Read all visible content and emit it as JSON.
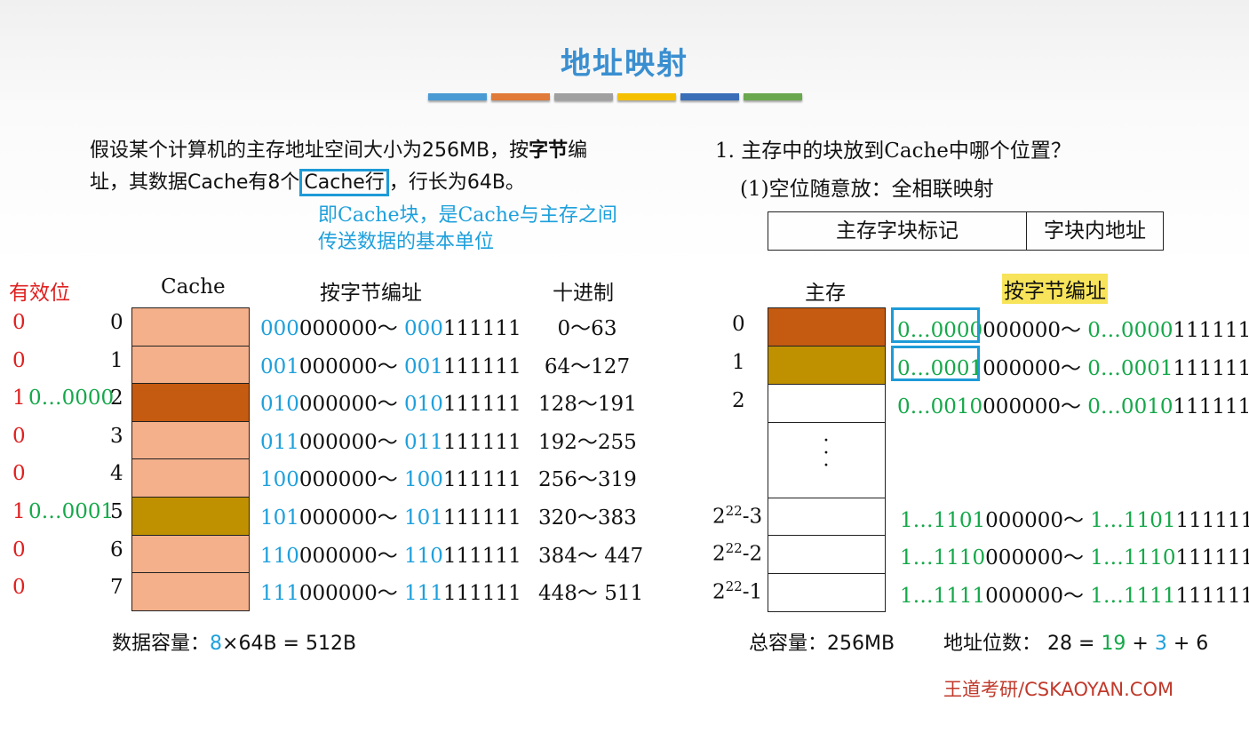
{
  "title": "地址映射",
  "colors": {
    "title": "#3a8fd0",
    "highlight_blue": "#1ea0dc",
    "red": "#e02020",
    "green": "#15a84a",
    "light_line": "#f3b08a",
    "dark_line": "#c55a11",
    "gold_line": "#bf9000"
  },
  "bars": [
    "#4a9ad4",
    "#e07b39",
    "#a0a0a0",
    "#f5c000",
    "#3a6fb8",
    "#6aa84f"
  ],
  "intro": {
    "line1": "假设某个计算机的主存地址空间大小为256MB，按字节编",
    "line1_pre": "假设某个计算机的主存地址空间大小为256MB，按",
    "line1_bold": "字节",
    "line1_post": "编",
    "line2_pre": "址，其数据Cache有8个",
    "line2_boxed": "Cache行",
    "line2_post": "，行长为64B。"
  },
  "note": {
    "line1": "即Cache块，是Cache与主存之间",
    "line2": "传送数据的基本单位"
  },
  "left_headers": {
    "valid": "有效位",
    "cache": "Cache",
    "byte_addr": "按字节编址",
    "decimal": "十进制"
  },
  "cache_rows": [
    {
      "valid": "0",
      "tag": "",
      "index": "0",
      "addr_start_prefix": "000",
      "addr_start_suffix": "000000～",
      "addr_end_prefix": "000",
      "addr_end_suffix": "111111",
      "decimal": "0～63"
    },
    {
      "valid": "0",
      "tag": "",
      "index": "1",
      "addr_start_prefix": "001",
      "addr_start_suffix": "000000～",
      "addr_end_prefix": "001",
      "addr_end_suffix": "111111",
      "decimal": "64～127"
    },
    {
      "valid": "1",
      "tag": "0…0000",
      "index": "2",
      "addr_start_prefix": "010",
      "addr_start_suffix": "000000～",
      "addr_end_prefix": "010",
      "addr_end_suffix": "111111",
      "decimal": "128～191"
    },
    {
      "valid": "0",
      "tag": "",
      "index": "3",
      "addr_start_prefix": "011",
      "addr_start_suffix": "000000～",
      "addr_end_prefix": "011",
      "addr_end_suffix": "111111",
      "decimal": "192～255"
    },
    {
      "valid": "0",
      "tag": "",
      "index": "4",
      "addr_start_prefix": "100",
      "addr_start_suffix": "000000～",
      "addr_end_prefix": "100",
      "addr_end_suffix": "111111",
      "decimal": "256～319"
    },
    {
      "valid": "1",
      "tag": "0…0001",
      "index": "5",
      "addr_start_prefix": "101",
      "addr_start_suffix": "000000～",
      "addr_end_prefix": "101",
      "addr_end_suffix": "111111",
      "decimal": "320～383"
    },
    {
      "valid": "0",
      "tag": "",
      "index": "6",
      "addr_start_prefix": "110",
      "addr_start_suffix": "000000～",
      "addr_end_prefix": "110",
      "addr_end_suffix": "111111",
      "decimal": "384～ 447"
    },
    {
      "valid": "0",
      "tag": "",
      "index": "7",
      "addr_start_prefix": "111",
      "addr_start_suffix": "000000～",
      "addr_end_prefix": "111",
      "addr_end_suffix": "111111",
      "decimal": "448～ 511"
    }
  ],
  "data_capacity": {
    "label": "数据容量：",
    "count": "8",
    "rest": "×64B = 512B"
  },
  "right": {
    "q1": "1. 主存中的块放到Cache中哪个位置？",
    "q2": "(1)空位随意放：全相联映射",
    "tag_field": "主存字块标记",
    "offset_field": "字块内地址",
    "mem_header": "主存",
    "byte_addr_header": "按字节编址",
    "dots": "·\n·\n·"
  },
  "mem_rows": [
    {
      "index": "0",
      "tag": "0…0000",
      "start_suffix": "000000～ ",
      "end_tag": "0…0000",
      "end_suffix": "111111"
    },
    {
      "index": "1",
      "tag": "0…0001",
      "start_suffix": "000000～ ",
      "end_tag": "0…0001",
      "end_suffix": "111111"
    },
    {
      "index": "2",
      "tag": "0…0010",
      "start_suffix": "000000～ ",
      "end_tag": "0…0010",
      "end_suffix": "111111"
    },
    {
      "index": "2",
      "exp": "22",
      "suffix": "-3",
      "tag": "1…1101",
      "start_suffix": "000000～ ",
      "end_tag": "1…1101",
      "end_suffix": "111111"
    },
    {
      "index": "2",
      "exp": "22",
      "suffix": "-2",
      "tag": "1…1110",
      "start_suffix": "000000～ ",
      "end_tag": "1…1110",
      "end_suffix": "111111"
    },
    {
      "index": "2",
      "exp": "22",
      "suffix": "-1",
      "tag": "1…1111",
      "start_suffix": "000000～ ",
      "end_tag": "1…1111",
      "end_suffix": "111111"
    }
  ],
  "totals": {
    "capacity": "总容量：256MB",
    "bits_label": "地址位数：",
    "bits_total": "28 = ",
    "bits_a": "19",
    "plus1": " + ",
    "bits_b": "3",
    "plus2": " + 6"
  },
  "brand": "王道考研/CSKAOYAN.COM"
}
